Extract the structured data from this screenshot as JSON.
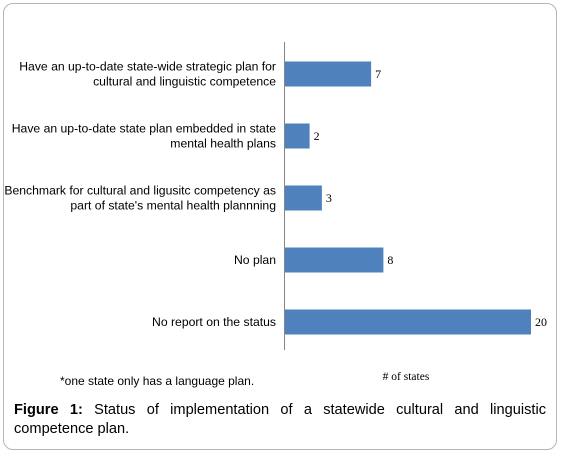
{
  "chart_data": {
    "type": "bar",
    "orientation": "horizontal",
    "categories": [
      [
        "Have an up-to-date state-wide strategic plan for",
        "cultural and linguistic competence"
      ],
      [
        "Have an up-to-date state plan embedded in state",
        "mental health plans"
      ],
      [
        "Benchmark for cultural and ligusitc competency as",
        "part of state's mental health plannning"
      ],
      [
        "No plan"
      ],
      [
        "No report on the status"
      ]
    ],
    "values": [
      7,
      2,
      3,
      8,
      20
    ],
    "xlabel": "# of states",
    "xlim": [
      0,
      20
    ],
    "grid": false,
    "bar_color": "#4f81bd"
  },
  "footnote": "*one state only has a language plan.",
  "caption": {
    "label": "Figure 1:",
    "text": " Status of implementation of a statewide cultural and linguistic competence plan."
  }
}
